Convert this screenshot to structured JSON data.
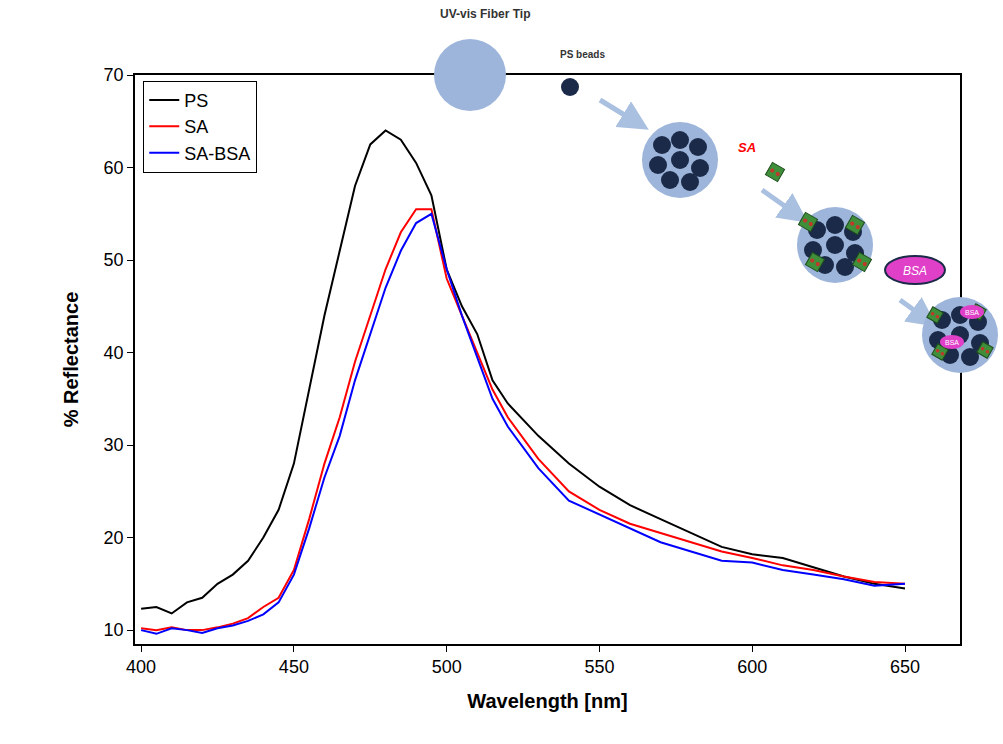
{
  "chart_data": {
    "type": "line",
    "xlabel": "Wavelength [nm]",
    "ylabel": "% Reflectance",
    "x": [
      400,
      405,
      410,
      415,
      420,
      425,
      430,
      435,
      440,
      445,
      450,
      455,
      460,
      465,
      470,
      475,
      480,
      485,
      490,
      495,
      500,
      505,
      510,
      515,
      520,
      530,
      540,
      550,
      560,
      570,
      580,
      590,
      600,
      610,
      620,
      630,
      640,
      650
    ],
    "series": [
      {
        "name": "PS",
        "color": "#000000",
        "values": [
          12.3,
          12.5,
          11.8,
          13,
          13.5,
          15,
          16,
          17.5,
          20,
          23,
          28,
          36,
          44,
          51,
          58,
          62.5,
          64,
          63,
          60.5,
          57,
          49,
          45,
          42,
          37,
          34.5,
          31,
          28,
          25.5,
          23.5,
          22,
          20.5,
          19,
          18.2,
          17.8,
          16.8,
          15.8,
          15,
          14.5
        ]
      },
      {
        "name": "SA",
        "color": "#ff0000",
        "values": [
          10.2,
          10.0,
          10.3,
          10.0,
          10.0,
          10.3,
          10.7,
          11.3,
          12.5,
          13.5,
          16.5,
          22,
          28,
          33,
          39,
          44,
          49,
          53,
          55.5,
          55.5,
          48,
          44,
          40,
          36,
          33,
          28.5,
          25,
          23,
          21.5,
          20.5,
          19.5,
          18.5,
          17.8,
          17,
          16.5,
          15.8,
          15.2,
          15
        ]
      },
      {
        "name": "SA-BSA",
        "color": "#0000ff",
        "values": [
          10,
          9.6,
          10.2,
          10.0,
          9.7,
          10.2,
          10.5,
          11,
          11.7,
          13,
          16,
          21,
          26.5,
          31,
          37,
          42,
          47,
          51,
          54,
          55,
          49,
          44,
          39.5,
          35,
          32,
          27.5,
          24,
          22.5,
          21,
          19.5,
          18.5,
          17.5,
          17.3,
          16.5,
          16,
          15.5,
          14.8,
          15
        ]
      }
    ],
    "xlim": [
      398,
      668
    ],
    "ylim": [
      8.5,
      70
    ],
    "xticks": [
      400,
      450,
      500,
      550,
      600,
      650
    ],
    "yticks": [
      10,
      20,
      30,
      40,
      50,
      60,
      70
    ],
    "grid": false,
    "legend": "upper left",
    "annotations": [
      "UV-vis Fiber Tip",
      "PS beads",
      "SA",
      "BSA"
    ]
  }
}
